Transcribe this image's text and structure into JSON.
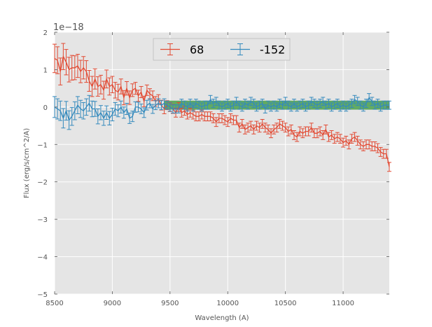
{
  "chart_data": {
    "type": "line",
    "title": "",
    "xlabel": "Wavelength (A)",
    "ylabel": "Flux (erg/s/cm^2/A)",
    "offset_label": "1e−18",
    "xlim": [
      8500,
      11400
    ],
    "ylim": [
      -5,
      2
    ],
    "xticks": [
      8500,
      9000,
      9500,
      10000,
      10500,
      11000
    ],
    "xtick_labels": [
      "8500",
      "9000",
      "9500",
      "10000",
      "10500",
      "11000"
    ],
    "yticks": [
      2,
      1,
      0,
      -1,
      -2,
      -3,
      -4,
      -5
    ],
    "ytick_labels": [
      "2",
      "1",
      "0",
      "−1",
      "−2",
      "−3",
      "−4",
      "−5"
    ],
    "grid": true,
    "legend_position": "top-center",
    "band": {
      "x": [
        9450,
        11400
      ],
      "center": 0.05,
      "half_height": 0.12,
      "color": "#4aa04a"
    },
    "series": [
      {
        "name": "68",
        "color": "#e24a33",
        "x": [
          8500,
          8525,
          8550,
          8575,
          8600,
          8625,
          8650,
          8675,
          8700,
          8725,
          8750,
          8775,
          8800,
          8825,
          8850,
          8875,
          8900,
          8925,
          8950,
          8975,
          9000,
          9025,
          9050,
          9075,
          9100,
          9125,
          9150,
          9175,
          9200,
          9225,
          9250,
          9275,
          9300,
          9325,
          9350,
          9375,
          9400,
          9425,
          9450,
          9475,
          9500,
          9525,
          9550,
          9575,
          9600,
          9625,
          9650,
          9675,
          9700,
          9725,
          9750,
          9775,
          9800,
          9825,
          9850,
          9875,
          9900,
          9925,
          9950,
          9975,
          10000,
          10025,
          10050,
          10075,
          10100,
          10125,
          10150,
          10175,
          10200,
          10225,
          10250,
          10275,
          10300,
          10325,
          10350,
          10375,
          10400,
          10425,
          10450,
          10475,
          10500,
          10525,
          10550,
          10575,
          10600,
          10625,
          10650,
          10675,
          10700,
          10725,
          10750,
          10775,
          10800,
          10825,
          10850,
          10875,
          10900,
          10925,
          10950,
          10975,
          11000,
          11025,
          11050,
          11075,
          11100,
          11125,
          11150,
          11175,
          11200,
          11225,
          11250,
          11275,
          11300,
          11325,
          11350,
          11375,
          11400
        ],
        "y": [
          1.3,
          1.25,
          0.95,
          1.35,
          1.2,
          1.0,
          1.05,
          1.05,
          1.1,
          0.95,
          1.05,
          0.95,
          0.7,
          0.55,
          0.75,
          0.55,
          0.6,
          0.45,
          0.75,
          0.55,
          0.6,
          0.45,
          0.4,
          0.55,
          0.25,
          0.5,
          0.25,
          0.45,
          0.5,
          0.3,
          0.4,
          0.15,
          0.45,
          0.35,
          0.3,
          0.15,
          0.2,
          0.05,
          -0.05,
          0.05,
          0.0,
          -0.05,
          -0.15,
          0.0,
          -0.15,
          -0.1,
          -0.2,
          -0.15,
          -0.2,
          -0.25,
          -0.25,
          -0.2,
          -0.25,
          -0.25,
          -0.25,
          -0.3,
          -0.4,
          -0.3,
          -0.3,
          -0.35,
          -0.4,
          -0.3,
          -0.35,
          -0.35,
          -0.55,
          -0.45,
          -0.6,
          -0.55,
          -0.5,
          -0.6,
          -0.5,
          -0.55,
          -0.45,
          -0.55,
          -0.6,
          -0.7,
          -0.6,
          -0.55,
          -0.45,
          -0.5,
          -0.55,
          -0.65,
          -0.6,
          -0.75,
          -0.8,
          -0.65,
          -0.7,
          -0.65,
          -0.65,
          -0.55,
          -0.7,
          -0.7,
          -0.65,
          -0.75,
          -0.6,
          -0.8,
          -0.75,
          -0.85,
          -0.8,
          -0.85,
          -0.95,
          -0.9,
          -1.0,
          -0.85,
          -0.8,
          -0.9,
          -1.0,
          -1.05,
          -1.0,
          -1.0,
          -1.05,
          -1.05,
          -1.1,
          -1.2,
          -1.25,
          -1.25,
          -1.6
        ],
        "err": [
          0.38,
          0.36,
          0.36,
          0.35,
          0.34,
          0.33,
          0.33,
          0.32,
          0.31,
          0.3,
          0.3,
          0.29,
          0.28,
          0.27,
          0.27,
          0.26,
          0.25,
          0.24,
          0.24,
          0.23,
          0.22,
          0.21,
          0.21,
          0.2,
          0.19,
          0.18,
          0.18,
          0.17,
          0.16,
          0.15,
          0.15,
          0.14,
          0.14,
          0.14,
          0.13,
          0.13,
          0.13,
          0.13,
          0.13,
          0.12,
          0.12,
          0.12,
          0.12,
          0.12,
          0.12,
          0.12,
          0.12,
          0.12,
          0.12,
          0.12,
          0.12,
          0.12,
          0.12,
          0.12,
          0.12,
          0.12,
          0.12,
          0.12,
          0.12,
          0.12,
          0.12,
          0.12,
          0.12,
          0.12,
          0.12,
          0.12,
          0.12,
          0.12,
          0.12,
          0.12,
          0.12,
          0.12,
          0.12,
          0.12,
          0.12,
          0.12,
          0.12,
          0.12,
          0.12,
          0.12,
          0.12,
          0.12,
          0.12,
          0.12,
          0.12,
          0.12,
          0.12,
          0.12,
          0.12,
          0.12,
          0.12,
          0.12,
          0.12,
          0.12,
          0.12,
          0.12,
          0.12,
          0.12,
          0.12,
          0.12,
          0.12,
          0.12,
          0.12,
          0.12,
          0.12,
          0.12,
          0.12,
          0.12,
          0.12,
          0.12,
          0.12,
          0.12,
          0.12,
          0.12,
          0.12,
          0.12,
          0.12
        ]
      },
      {
        "name": "-152",
        "color": "#348abd",
        "x": [
          8500,
          8525,
          8550,
          8575,
          8600,
          8625,
          8650,
          8675,
          8700,
          8725,
          8750,
          8775,
          8800,
          8825,
          8850,
          8875,
          8900,
          8925,
          8950,
          8975,
          9000,
          9025,
          9050,
          9075,
          9100,
          9125,
          9150,
          9175,
          9200,
          9225,
          9250,
          9275,
          9300,
          9325,
          9350,
          9375,
          9400,
          9425,
          9450,
          9475,
          9500,
          9525,
          9550,
          9575,
          9600,
          9625,
          9650,
          9675,
          9700,
          9725,
          9750,
          9775,
          9800,
          9825,
          9850,
          9875,
          9900,
          9925,
          9950,
          9975,
          10000,
          10025,
          10050,
          10075,
          10100,
          10125,
          10150,
          10175,
          10200,
          10225,
          10250,
          10275,
          10300,
          10325,
          10350,
          10375,
          10400,
          10425,
          10450,
          10475,
          10500,
          10525,
          10550,
          10575,
          10600,
          10625,
          10650,
          10675,
          10700,
          10725,
          10750,
          10775,
          10800,
          10825,
          10850,
          10875,
          10900,
          10925,
          10950,
          10975,
          11000,
          11025,
          11050,
          11075,
          11100,
          11125,
          11150,
          11175,
          11200,
          11225,
          11250,
          11275,
          11300,
          11325,
          11350,
          11375,
          11400
        ],
        "y": [
          0.0,
          -0.05,
          -0.1,
          -0.3,
          -0.1,
          -0.35,
          -0.25,
          -0.1,
          0.05,
          -0.05,
          -0.1,
          0.0,
          0.1,
          -0.05,
          -0.05,
          -0.25,
          -0.15,
          -0.3,
          -0.15,
          -0.3,
          -0.2,
          -0.05,
          -0.1,
          0.0,
          -0.15,
          -0.05,
          -0.3,
          -0.25,
          0.0,
          0.0,
          -0.05,
          -0.15,
          0.05,
          0.1,
          -0.05,
          0.05,
          0.1,
          0.05,
          0.1,
          0.05,
          0.0,
          -0.05,
          -0.05,
          -0.05,
          0.1,
          0.05,
          0.0,
          0.1,
          0.0,
          0.1,
          0.05,
          0.0,
          0.05,
          0.05,
          0.2,
          0.1,
          0.15,
          0.05,
          0.0,
          0.05,
          0.1,
          0.0,
          0.05,
          0.15,
          0.05,
          0.0,
          0.1,
          0.05,
          0.15,
          0.1,
          0.0,
          0.05,
          0.1,
          -0.05,
          0.05,
          0.0,
          0.05,
          0.0,
          0.1,
          0.05,
          0.15,
          0.05,
          0.0,
          0.1,
          0.0,
          0.05,
          0.1,
          0.0,
          0.05,
          0.15,
          0.1,
          0.05,
          0.1,
          0.15,
          0.05,
          0.1,
          0.0,
          0.05,
          0.1,
          0.0,
          0.05,
          0.0,
          0.05,
          0.1,
          0.2,
          0.15,
          0.05,
          0.0,
          0.1,
          0.25,
          0.15,
          0.05,
          0.1,
          0.0,
          0.05,
          0.05,
          0.05
        ],
        "err": [
          0.28,
          0.27,
          0.26,
          0.26,
          0.25,
          0.25,
          0.24,
          0.24,
          0.23,
          0.23,
          0.22,
          0.22,
          0.21,
          0.21,
          0.2,
          0.2,
          0.19,
          0.19,
          0.18,
          0.18,
          0.17,
          0.17,
          0.16,
          0.16,
          0.15,
          0.15,
          0.14,
          0.14,
          0.14,
          0.13,
          0.13,
          0.13,
          0.13,
          0.12,
          0.12,
          0.12,
          0.12,
          0.12,
          0.12,
          0.11,
          0.11,
          0.11,
          0.11,
          0.11,
          0.11,
          0.11,
          0.11,
          0.11,
          0.11,
          0.11,
          0.11,
          0.11,
          0.11,
          0.11,
          0.11,
          0.11,
          0.11,
          0.11,
          0.11,
          0.11,
          0.11,
          0.11,
          0.11,
          0.11,
          0.11,
          0.11,
          0.11,
          0.11,
          0.11,
          0.11,
          0.11,
          0.11,
          0.11,
          0.11,
          0.11,
          0.11,
          0.11,
          0.11,
          0.11,
          0.11,
          0.11,
          0.11,
          0.11,
          0.11,
          0.11,
          0.11,
          0.11,
          0.11,
          0.11,
          0.11,
          0.11,
          0.11,
          0.11,
          0.11,
          0.11,
          0.11,
          0.11,
          0.11,
          0.11,
          0.11,
          0.11,
          0.11,
          0.11,
          0.11,
          0.11,
          0.11,
          0.11,
          0.11,
          0.11,
          0.11,
          0.11,
          0.11,
          0.11,
          0.11,
          0.11,
          0.11,
          0.11
        ]
      }
    ]
  }
}
